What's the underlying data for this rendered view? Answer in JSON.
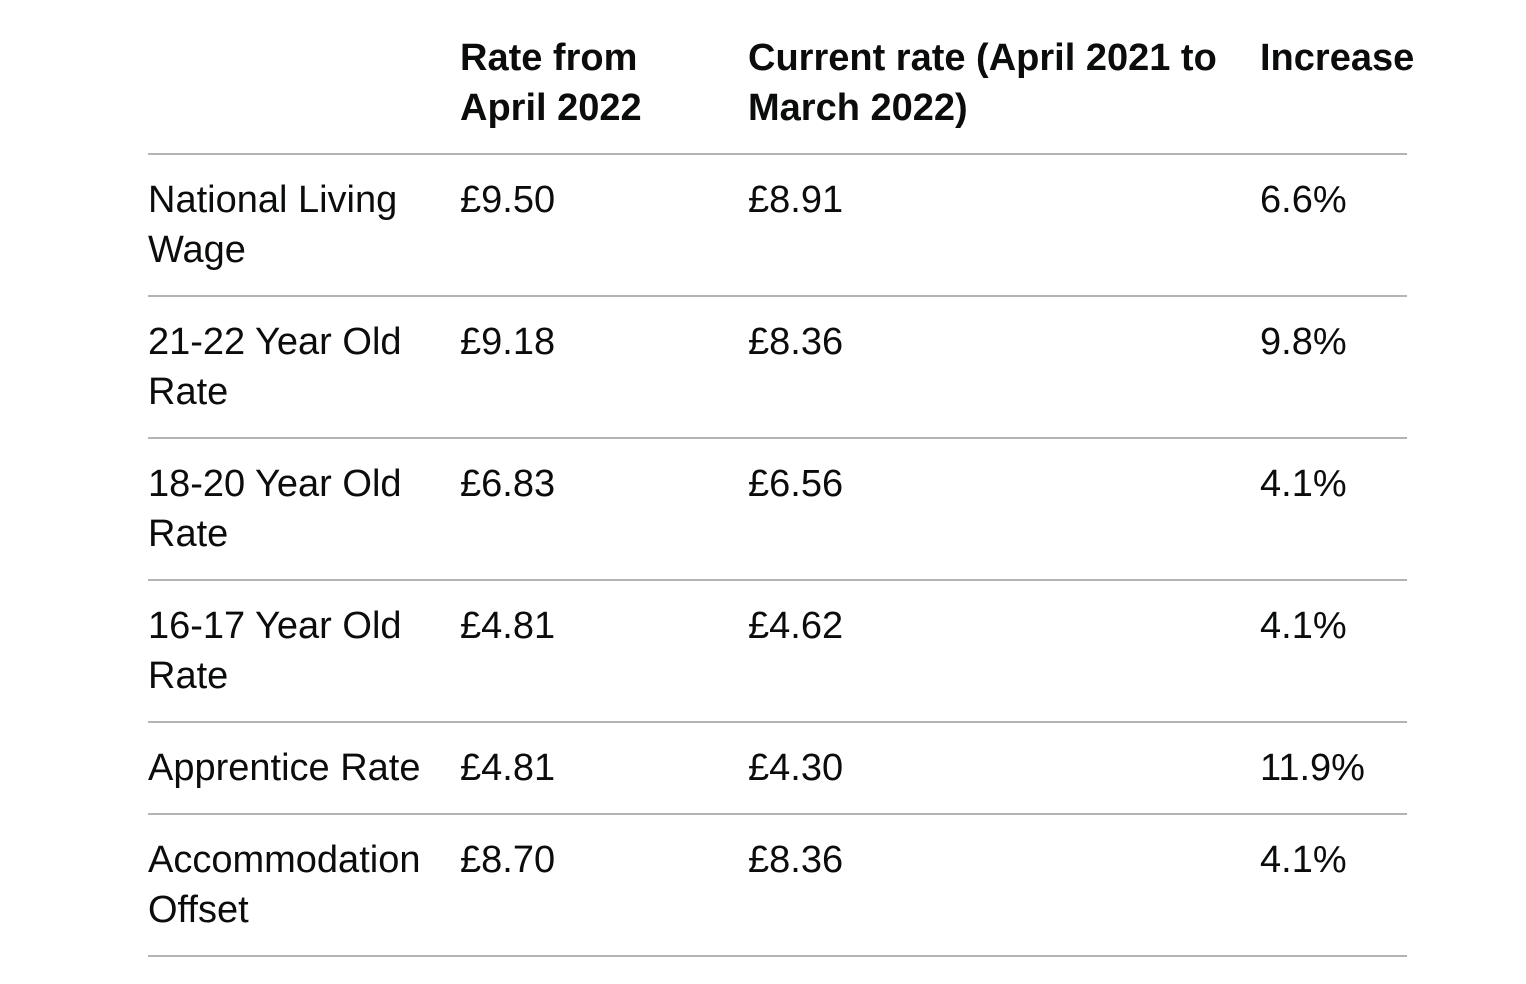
{
  "colors": {
    "text": "#0b0c0c",
    "row_rule": "#b1b4b6",
    "background": "#ffffff"
  },
  "table": {
    "columns": [
      {
        "label": ""
      },
      {
        "label": "Rate from April 2022"
      },
      {
        "label": "Current rate (April 2021 to March 2022)"
      },
      {
        "label": "Increase"
      }
    ],
    "rows": [
      {
        "cells": [
          "National Living Wage",
          "£9.50",
          "£8.91",
          "6.6%"
        ]
      },
      {
        "cells": [
          "21-22 Year Old Rate",
          "£9.18",
          "£8.36",
          "9.8%"
        ]
      },
      {
        "cells": [
          "18-20 Year Old Rate",
          "£6.83",
          "£6.56",
          "4.1%"
        ]
      },
      {
        "cells": [
          "16-17 Year Old Rate",
          "£4.81",
          "£4.62",
          "4.1%"
        ]
      },
      {
        "cells": [
          "Apprentice Rate",
          "£4.81",
          "£4.30",
          "11.9%"
        ]
      },
      {
        "cells": [
          "Accommodation Offset",
          "£8.70",
          "£8.36",
          "4.1%"
        ]
      }
    ]
  }
}
